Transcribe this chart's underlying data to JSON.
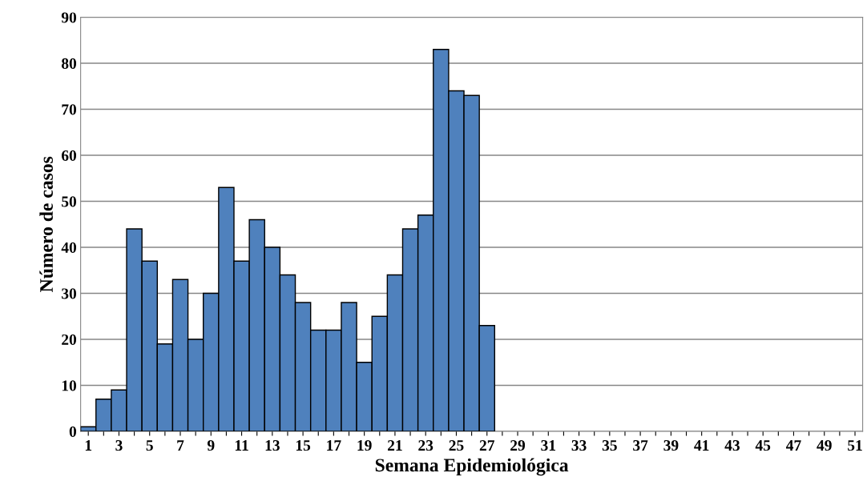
{
  "chart_data": {
    "type": "bar",
    "xlabel": "Semana Epidemiológica",
    "ylabel": "Número de casos",
    "categories": [
      "1",
      null,
      "3",
      null,
      "5",
      null,
      "7",
      null,
      "9",
      null,
      "11",
      null,
      "13",
      null,
      "15",
      null,
      "17",
      null,
      "19",
      null,
      "21",
      null,
      "23",
      null,
      "25",
      null,
      "27",
      null,
      "29",
      null,
      "31",
      null,
      "33",
      null,
      "35",
      null,
      "37",
      null,
      "39",
      null,
      "41",
      null,
      "43",
      null,
      "45",
      null,
      "47",
      null,
      "49",
      null,
      "51"
    ],
    "values": [
      1,
      7,
      9,
      44,
      37,
      19,
      33,
      20,
      30,
      53,
      37,
      46,
      40,
      34,
      28,
      22,
      22,
      28,
      15,
      25,
      34,
      44,
      47,
      83,
      74,
      73,
      23,
      null,
      null,
      null,
      null,
      null,
      null,
      null,
      null,
      null,
      null,
      null,
      null,
      null,
      null,
      null,
      null,
      null,
      null,
      null,
      null,
      null,
      null,
      null,
      null
    ],
    "color": "#4f81bd",
    "ylim": [
      0,
      90
    ],
    "yticks": [
      0,
      10,
      20,
      30,
      40,
      50,
      60,
      70,
      80,
      90
    ],
    "grid": "y",
    "legend": false
  }
}
